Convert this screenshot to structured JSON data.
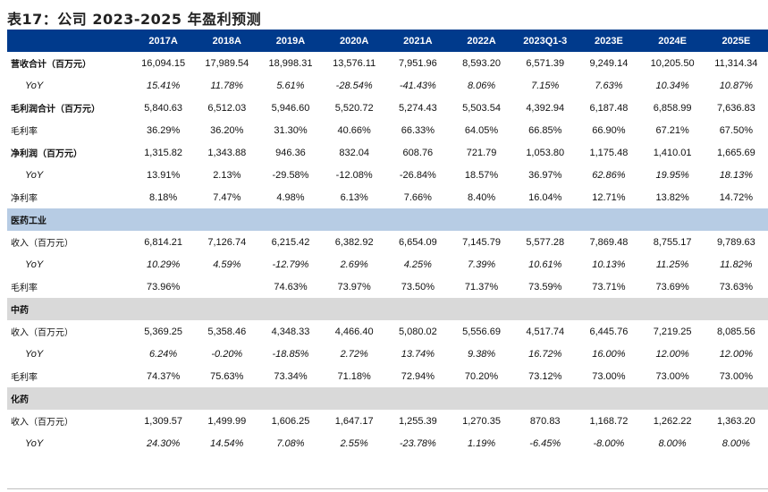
{
  "title": "表17：公司 2023-2025 年盈利预测",
  "columns": [
    "",
    "2017A",
    "2018A",
    "2019A",
    "2020A",
    "2021A",
    "2022A",
    "2023Q1-3",
    "2023E",
    "2024E",
    "2025E"
  ],
  "rows": [
    {
      "type": "bold",
      "label": "营收合计（百万元）",
      "values": [
        "16,094.15",
        "17,989.54",
        "18,998.31",
        "13,576.11",
        "7,951.96",
        "8,593.20",
        "6,571.39",
        "9,249.14",
        "10,205.50",
        "11,314.34"
      ]
    },
    {
      "type": "yoy",
      "label": "YoY",
      "values": [
        "15.41%",
        "11.78%",
        "5.61%",
        "-28.54%",
        "-41.43%",
        "8.06%",
        "7.15%",
        "7.63%",
        "10.34%",
        "10.87%"
      ]
    },
    {
      "type": "bold",
      "label": "毛利润合计（百万元）",
      "values": [
        "5,840.63",
        "6,512.03",
        "5,946.60",
        "5,520.72",
        "5,274.43",
        "5,503.54",
        "4,392.94",
        "6,187.48",
        "6,858.99",
        "7,636.83"
      ]
    },
    {
      "type": "plain",
      "label": "毛利率",
      "values": [
        "36.29%",
        "36.20%",
        "31.30%",
        "40.66%",
        "66.33%",
        "64.05%",
        "66.85%",
        "66.90%",
        "67.21%",
        "67.50%"
      ]
    },
    {
      "type": "bold",
      "label": "净利润（百万元）",
      "values": [
        "1,315.82",
        "1,343.88",
        "946.36",
        "832.04",
        "608.76",
        "721.79",
        "1,053.80",
        "1,175.48",
        "1,410.01",
        "1,665.69"
      ]
    },
    {
      "type": "yoy",
      "label": "YoY",
      "values": [
        "13.91%",
        "2.13%",
        "-29.58%",
        "-12.08%",
        "-26.84%",
        "18.57%",
        "36.97%",
        "62.86%",
        "19.95%",
        "18.13%"
      ],
      "italic_from": 7
    },
    {
      "type": "plain",
      "label": "净利率",
      "values": [
        "8.18%",
        "7.47%",
        "4.98%",
        "6.13%",
        "7.66%",
        "8.40%",
        "16.04%",
        "12.71%",
        "13.82%",
        "14.72%"
      ]
    },
    {
      "type": "section-blue",
      "label": "医药工业"
    },
    {
      "type": "plain",
      "label": "收入（百万元）",
      "values": [
        "6,814.21",
        "7,126.74",
        "6,215.42",
        "6,382.92",
        "6,654.09",
        "7,145.79",
        "5,577.28",
        "7,869.48",
        "8,755.17",
        "9,789.63"
      ]
    },
    {
      "type": "yoy",
      "label": "YoY",
      "values": [
        "10.29%",
        "4.59%",
        "-12.79%",
        "2.69%",
        "4.25%",
        "7.39%",
        "10.61%",
        "10.13%",
        "11.25%",
        "11.82%"
      ]
    },
    {
      "type": "plain",
      "label": "毛利率",
      "values": [
        "73.96%",
        "",
        "74.63%",
        "73.97%",
        "73.50%",
        "71.37%",
        "73.59%",
        "73.71%",
        "73.69%",
        "73.63%"
      ]
    },
    {
      "type": "section-gray",
      "label": "中药"
    },
    {
      "type": "plain",
      "label": "收入（百万元）",
      "values": [
        "5,369.25",
        "5,358.46",
        "4,348.33",
        "4,466.40",
        "5,080.02",
        "5,556.69",
        "4,517.74",
        "6,445.76",
        "7,219.25",
        "8,085.56"
      ]
    },
    {
      "type": "yoy",
      "label": "YoY",
      "values": [
        "6.24%",
        "-0.20%",
        "-18.85%",
        "2.72%",
        "13.74%",
        "9.38%",
        "16.72%",
        "16.00%",
        "12.00%",
        "12.00%"
      ]
    },
    {
      "type": "plain",
      "label": "毛利率",
      "values": [
        "74.37%",
        "75.63%",
        "73.34%",
        "71.18%",
        "72.94%",
        "70.20%",
        "73.12%",
        "73.00%",
        "73.00%",
        "73.00%"
      ]
    },
    {
      "type": "section-gray",
      "label": "化药"
    },
    {
      "type": "plain",
      "label": "收入（百万元）",
      "values": [
        "1,309.57",
        "1,499.99",
        "1,606.25",
        "1,647.17",
        "1,255.39",
        "1,270.35",
        "870.83",
        "1,168.72",
        "1,262.22",
        "1,363.20"
      ]
    },
    {
      "type": "yoy",
      "label": "YoY",
      "values": [
        "24.30%",
        "14.54%",
        "7.08%",
        "2.55%",
        "-23.78%",
        "1.19%",
        "-6.45%",
        "-8.00%",
        "8.00%",
        "8.00%"
      ]
    }
  ],
  "colors": {
    "header_bg": "#003a8c",
    "header_text": "#ffffff",
    "section_blue": "#b7cce4",
    "section_gray": "#d9d9d9"
  }
}
